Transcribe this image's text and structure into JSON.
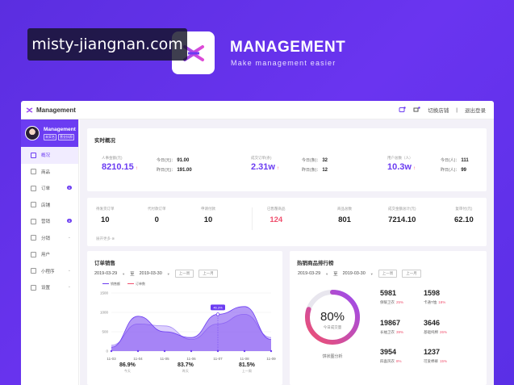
{
  "watermark": "misty-jiangnan.com",
  "brand": {
    "title": "MANAGEMENT",
    "subtitle": "Make management easier"
  },
  "topbar": {
    "app_name": "Management",
    "switch_store": "切换店铺",
    "separator": "|",
    "logout": "退出登录"
  },
  "profile": {
    "name": "Management",
    "tags": [
      "未实名",
      "营业执照"
    ]
  },
  "sidebar": {
    "items": [
      {
        "label": "概况",
        "active": true
      },
      {
        "label": "商品"
      },
      {
        "label": "订单",
        "badge": "6"
      },
      {
        "label": "店铺"
      },
      {
        "label": "营销",
        "badge": "8"
      },
      {
        "label": "分销",
        "caret": "⌄"
      },
      {
        "label": "用户"
      },
      {
        "label": "小程序",
        "caret": "⌄"
      },
      {
        "label": "设置",
        "caret": "⌄"
      }
    ]
  },
  "realtime": {
    "title": "实时概况",
    "blocks": [
      {
        "label": "人事金额(元)",
        "value": "8210.15",
        "trend": "↑",
        "today_label": "今日(元)：",
        "today": "91.00",
        "yesterday_label": "昨日(元)：",
        "yesterday": "191.00"
      },
      {
        "label": "成交订单(条)",
        "value": "2.31w",
        "trend": "↑",
        "today_label": "今日(条)：",
        "today": "32",
        "yesterday_label": "昨日(条)：",
        "yesterday": "12"
      },
      {
        "label": "用户总数（人）",
        "value": "10.3w",
        "trend": "↑",
        "today_label": "今日(人)：",
        "today": "111",
        "yesterday_label": "昨日(人)：",
        "yesterday": "99"
      }
    ]
  },
  "stats": {
    "items": [
      {
        "label": "待发货订单",
        "value": "10"
      },
      {
        "label": "代付款订单",
        "value": "0"
      },
      {
        "label": "申请付款",
        "value": "10"
      },
      {
        "label": "已售罄商品",
        "value": "124",
        "highlight": true
      },
      {
        "label": "商品总数",
        "value": "801"
      },
      {
        "label": "成交金额总计(元)",
        "value": "7214.10"
      },
      {
        "label": "复审付(元)",
        "value": "62.10"
      }
    ],
    "see_more": "展开更多 ⊗"
  },
  "sales": {
    "title": "订单销售",
    "date_from": "2019-03-29",
    "to": "至",
    "date_to": "2019-03-30",
    "prev_week": "上一周",
    "next_week": "上一月",
    "legend": [
      "销售额",
      "订单数"
    ],
    "tooltip": "46.3%",
    "bottom": [
      {
        "value": "86.9%",
        "label": "今天"
      },
      {
        "value": "83.7%",
        "label": "昨天"
      },
      {
        "value": "81.5%",
        "label": "上一周"
      }
    ]
  },
  "chart_data": {
    "type": "area",
    "categories": [
      "11-03",
      "11-04",
      "11-05",
      "11-06",
      "11-07",
      "11-08",
      "11-09"
    ],
    "ylim": [
      0,
      1500
    ],
    "yticks": [
      "0",
      "500",
      "1000",
      "1500"
    ],
    "series": [
      {
        "name": "销售额",
        "values": [
          100,
          900,
          500,
          350,
          950,
          1150,
          300
        ]
      },
      {
        "name": "订单数",
        "values": [
          150,
          700,
          650,
          300,
          700,
          950,
          350
        ]
      }
    ]
  },
  "ranking": {
    "title": "热销商品排行榜",
    "date_from": "2019-03-29",
    "to": "至",
    "date_to": "2019-03-30",
    "prev_week": "上一周",
    "next_week": "上一月",
    "donut_value": "80%",
    "donut_percent": 80,
    "donut_label": "今日成交量",
    "donut_caption": "饼状图分析",
    "items": [
      {
        "value": "5981",
        "label": "保暖卫衣",
        "pct": "25%"
      },
      {
        "value": "1598",
        "label": "卡通T恤",
        "pct": "18%"
      },
      {
        "value": "19867",
        "label": "长袖卫衣",
        "pct": "39%"
      },
      {
        "value": "3646",
        "label": "基础纯棉",
        "pct": "26%"
      },
      {
        "value": "3954",
        "label": "四喜风衣",
        "pct": "8%"
      },
      {
        "value": "1237",
        "label": "可爱棉裤",
        "pct": "15%"
      }
    ]
  },
  "colors": {
    "accent": "#6b3cf2",
    "up": "#f0506e",
    "background": "#5b2ee0"
  }
}
